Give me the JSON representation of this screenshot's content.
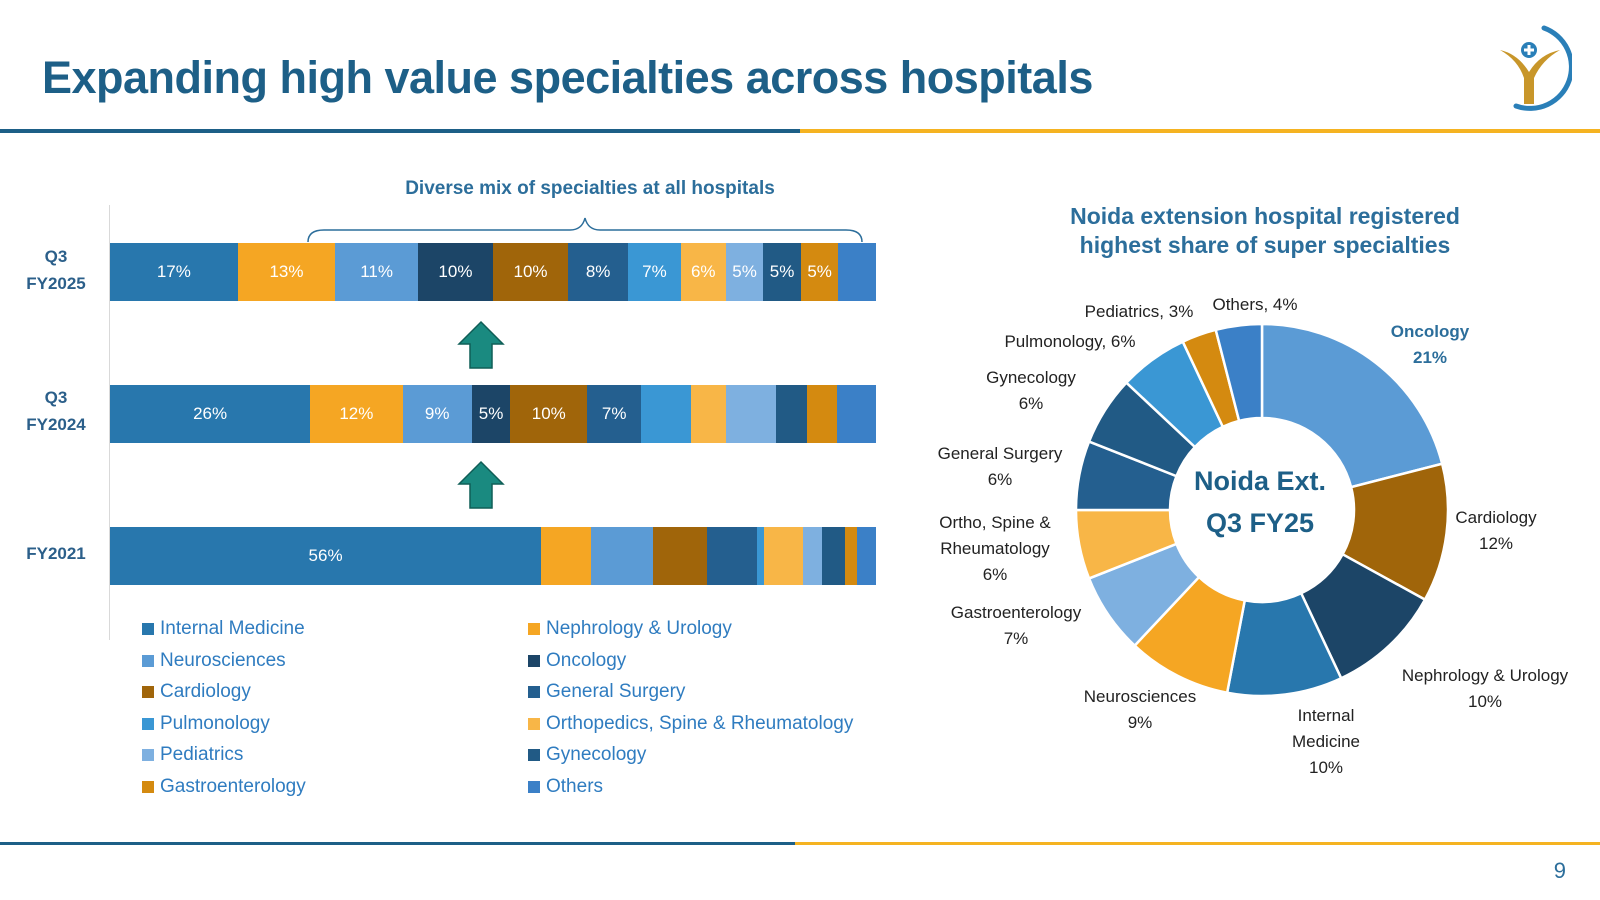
{
  "page": {
    "title": "Expanding high value specialties across hospitals",
    "page_number": "9",
    "colors": {
      "navy": "#1d5f87",
      "gold": "#f5b321"
    }
  },
  "chart_data": [
    {
      "type": "bar",
      "orientation": "horizontal-stacked-100",
      "title": "Diverse mix of specialties at all hospitals",
      "categories": [
        "Q3 FY2025",
        "Q3 FY2024",
        "FY2021"
      ],
      "category_labels": [
        [
          "Q3",
          "FY2025"
        ],
        [
          "Q3",
          "FY2024"
        ],
        [
          "FY2021"
        ]
      ],
      "legend_position": "bottom",
      "series": [
        {
          "name": "Internal Medicine",
          "color": "#2877ad",
          "values": [
            17,
            26,
            56
          ],
          "labels": [
            "17%",
            "26%",
            "56%"
          ]
        },
        {
          "name": "Nephrology & Urology",
          "color": "#f5a623",
          "values": [
            13,
            12,
            6.5
          ],
          "labels": [
            "13%",
            "12%",
            ""
          ]
        },
        {
          "name": "Neurosciences",
          "color": "#5b9bd5",
          "values": [
            11,
            9,
            8
          ],
          "labels": [
            "11%",
            "9%",
            ""
          ]
        },
        {
          "name": "Oncology",
          "color": "#1c4567",
          "values": [
            10,
            5,
            0
          ],
          "labels": [
            "10%",
            "5%",
            ""
          ]
        },
        {
          "name": "Cardiology",
          "color": "#a0650a",
          "values": [
            10,
            10,
            7
          ],
          "labels": [
            "10%",
            "10%",
            ""
          ]
        },
        {
          "name": "General Surgery",
          "color": "#245f8f",
          "values": [
            8,
            7,
            6.5
          ],
          "labels": [
            "8%",
            "7%",
            ""
          ]
        },
        {
          "name": "Pulmonology",
          "color": "#3a97d4",
          "values": [
            7,
            6.5,
            1
          ],
          "labels": [
            "7%",
            "",
            ""
          ]
        },
        {
          "name": "Orthopedics, Spine & Rheumatology",
          "color": "#f8b647",
          "values": [
            6,
            4.5,
            5
          ],
          "labels": [
            "6%",
            "",
            ""
          ]
        },
        {
          "name": "Pediatrics",
          "color": "#7eb0e0",
          "values": [
            5,
            6.5,
            2.5
          ],
          "labels": [
            "5%",
            "",
            ""
          ]
        },
        {
          "name": "Gynecology",
          "color": "#215a85",
          "values": [
            5,
            4,
            3
          ],
          "labels": [
            "5%",
            "",
            ""
          ]
        },
        {
          "name": "Gastroenterology",
          "color": "#d48a10",
          "values": [
            5,
            4,
            1.5
          ],
          "labels": [
            "5%",
            "",
            ""
          ]
        },
        {
          "name": "Others",
          "color": "#3b80c7",
          "values": [
            5,
            5,
            2.5
          ],
          "labels": [
            "",
            "",
            ""
          ]
        }
      ]
    },
    {
      "type": "pie",
      "variant": "donut",
      "title": [
        "Noida extension hospital registered",
        "highest share of super specialties"
      ],
      "center_label": [
        "Noida Ext.",
        "Q3 FY25"
      ],
      "slices": [
        {
          "name": "Oncology",
          "value": 21,
          "label": [
            "Oncology",
            "21%"
          ],
          "color": "#5b9bd5",
          "highlight": true
        },
        {
          "name": "Cardiology",
          "value": 12,
          "label": [
            "Cardiology",
            "12%"
          ],
          "color": "#a0650a"
        },
        {
          "name": "Nephrology & Urology",
          "value": 10,
          "label": [
            "Nephrology & Urology",
            "10%"
          ],
          "color": "#1c4567"
        },
        {
          "name": "Internal Medicine",
          "value": 10,
          "label": [
            "Internal",
            "Medicine",
            "10%"
          ],
          "color": "#2877ad"
        },
        {
          "name": "Neurosciences",
          "value": 9,
          "label": [
            "Neurosciences",
            "9%"
          ],
          "color": "#f5a623"
        },
        {
          "name": "Gastroenterology",
          "value": 7,
          "label": [
            "Gastroenterology",
            "7%"
          ],
          "color": "#7eb0e0"
        },
        {
          "name": "Ortho, Spine & Rheumatology",
          "value": 6,
          "label": [
            "Ortho, Spine &",
            "Rheumatology",
            "6%"
          ],
          "color": "#f8b647"
        },
        {
          "name": "General Surgery",
          "value": 6,
          "label": [
            "General Surgery",
            "6%"
          ],
          "color": "#245f8f"
        },
        {
          "name": "Gynecology",
          "value": 6,
          "label": [
            "Gynecology",
            "6%"
          ],
          "color": "#215a85"
        },
        {
          "name": "Pulmonology",
          "value": 6,
          "label": [
            "Pulmonology, 6%"
          ],
          "color": "#3a97d4"
        },
        {
          "name": "Pediatrics",
          "value": 3,
          "label": [
            "Pediatrics, 3%"
          ],
          "color": "#d48a10"
        },
        {
          "name": "Others",
          "value": 4,
          "label": [
            "Others, 4%"
          ],
          "color": "#3b80c7"
        }
      ]
    }
  ]
}
